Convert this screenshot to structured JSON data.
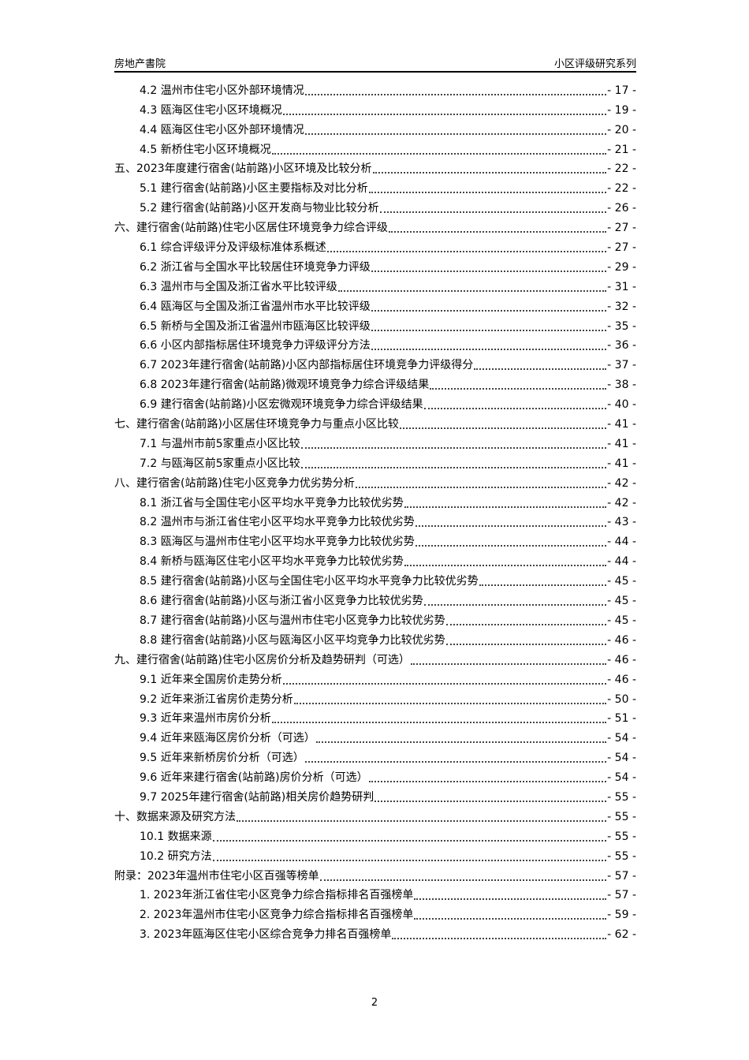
{
  "header": {
    "left": "房地产書院",
    "right": "小区评级研究系列"
  },
  "toc": [
    {
      "level": 2,
      "title": "4.2 温州市住宅小区外部环境情况",
      "page": "- 17 -"
    },
    {
      "level": 2,
      "title": "4.3 瓯海区住宅小区环境概况",
      "page": "- 19 -"
    },
    {
      "level": 2,
      "title": "4.4 瓯海区住宅小区外部环境情况",
      "page": "- 20 -"
    },
    {
      "level": 2,
      "title": "4.5 新桥住宅小区环境概况",
      "page": "- 21 -"
    },
    {
      "level": 1,
      "title": "五、2023年度建行宿舍(站前路)小区环境及比较分析",
      "page": "- 22 -"
    },
    {
      "level": 2,
      "title": "5.1 建行宿舍(站前路)小区主要指标及对比分析",
      "page": "- 22 -"
    },
    {
      "level": 2,
      "title": "5.2 建行宿舍(站前路)小区开发商与物业比较分析",
      "page": "- 26 -"
    },
    {
      "level": 1,
      "title": "六、建行宿舍(站前路)住宅小区居住环境竞争力综合评级",
      "page": "- 27 -"
    },
    {
      "level": 2,
      "title": "6.1 综合评级评分及评级标准体系概述",
      "page": "- 27 -"
    },
    {
      "level": 2,
      "title": "6.2 浙江省与全国水平比较居住环境竞争力评级",
      "page": "- 29 -"
    },
    {
      "level": 2,
      "title": "6.3 温州市与全国及浙江省水平比较评级",
      "page": "- 31 -"
    },
    {
      "level": 2,
      "title": "6.4 瓯海区与全国及浙江省温州市水平比较评级",
      "page": "- 32 -"
    },
    {
      "level": 2,
      "title": "6.5 新桥与全国及浙江省温州市瓯海区比较评级",
      "page": "- 35 -"
    },
    {
      "level": 2,
      "title": "6.6 小区内部指标居住环境竞争力评级评分方法",
      "page": "- 36 -"
    },
    {
      "level": 2,
      "title": "6.7 2023年建行宿舍(站前路)小区内部指标居住环境竞争力评级得分",
      "page": "- 37 -"
    },
    {
      "level": 2,
      "title": "6.8 2023年建行宿舍(站前路)微观环境竞争力综合评级结果",
      "page": "- 38 -"
    },
    {
      "level": 2,
      "title": "6.9 建行宿舍(站前路)小区宏微观环境竞争力综合评级结果",
      "page": "- 40 -"
    },
    {
      "level": 1,
      "title": "七、建行宿舍(站前路)小区居住环境竞争力与重点小区比较",
      "page": "- 41 -"
    },
    {
      "level": 2,
      "title": "7.1 与温州市前5家重点小区比较",
      "page": "- 41 -"
    },
    {
      "level": 2,
      "title": "7.2 与瓯海区前5家重点小区比较",
      "page": "- 41 -"
    },
    {
      "level": 1,
      "title": "八、建行宿舍(站前路)住宅小区竞争力优劣势分析",
      "page": "- 42 -"
    },
    {
      "level": 2,
      "title": "8.1 浙江省与全国住宅小区平均水平竞争力比较优劣势",
      "page": "- 42 -"
    },
    {
      "level": 2,
      "title": "8.2 温州市与浙江省住宅小区平均水平竞争力比较优劣势",
      "page": "- 43 -"
    },
    {
      "level": 2,
      "title": "8.3 瓯海区与温州市住宅小区平均水平竞争力比较优劣势",
      "page": "- 44 -"
    },
    {
      "level": 2,
      "title": "8.4 新桥与瓯海区住宅小区平均水平竞争力比较优劣势",
      "page": "- 44 -"
    },
    {
      "level": 2,
      "title": "8.5 建行宿舍(站前路)小区与全国住宅小区平均水平竞争力比较优劣势",
      "page": "- 45 -"
    },
    {
      "level": 2,
      "title": "8.6 建行宿舍(站前路)小区与浙江省小区竞争力比较优劣势",
      "page": "- 45 -"
    },
    {
      "level": 2,
      "title": "8.7 建行宿舍(站前路)小区与温州市住宅小区竞争力比较优劣势",
      "page": "- 45 -"
    },
    {
      "level": 2,
      "title": "8.8 建行宿舍(站前路)小区与瓯海区小区平均竞争力比较优劣势",
      "page": "- 46 -"
    },
    {
      "level": 1,
      "title": "九、建行宿舍(站前路)住宅小区房价分析及趋势研判（可选）",
      "page": "- 46 -"
    },
    {
      "level": 2,
      "title": "9.1 近年来全国房价走势分析",
      "page": "- 46 -"
    },
    {
      "level": 2,
      "title": "9.2 近年来浙江省房价走势分析",
      "page": "- 50 -"
    },
    {
      "level": 2,
      "title": "9.3 近年来温州市房价分析",
      "page": "- 51 -"
    },
    {
      "level": 2,
      "title": "9.4 近年来瓯海区房价分析（可选）",
      "page": "- 54 -"
    },
    {
      "level": 2,
      "title": "9.5 近年来新桥房价分析（可选）",
      "page": "- 54 -"
    },
    {
      "level": 2,
      "title": "9.6 近年来建行宿舍(站前路)房价分析（可选）",
      "page": "- 54 -"
    },
    {
      "level": 2,
      "title": "9.7 2025年建行宿舍(站前路)相关房价趋势研判",
      "page": "- 55 -"
    },
    {
      "level": 1,
      "title": "十、数据来源及研究方法",
      "page": "- 55 -"
    },
    {
      "level": 2,
      "title": "10.1 数据来源",
      "page": "- 55 -"
    },
    {
      "level": 2,
      "title": "10.2 研究方法",
      "page": "- 55 -"
    },
    {
      "level": 1,
      "title": "附录：2023年温州市住宅小区百强等榜单",
      "page": "- 57 -"
    },
    {
      "level": 2,
      "title": "1. 2023年浙江省住宅小区竞争力综合指标排名百强榜单",
      "page": "- 57 -"
    },
    {
      "level": 2,
      "title": "2. 2023年温州市住宅小区竞争力综合指标排名百强榜单",
      "page": "- 59 -"
    },
    {
      "level": 2,
      "title": "3. 2023年瓯海区住宅小区综合竞争力排名百强榜单",
      "page": "- 62 -"
    }
  ],
  "footer": {
    "page_number": "2"
  }
}
